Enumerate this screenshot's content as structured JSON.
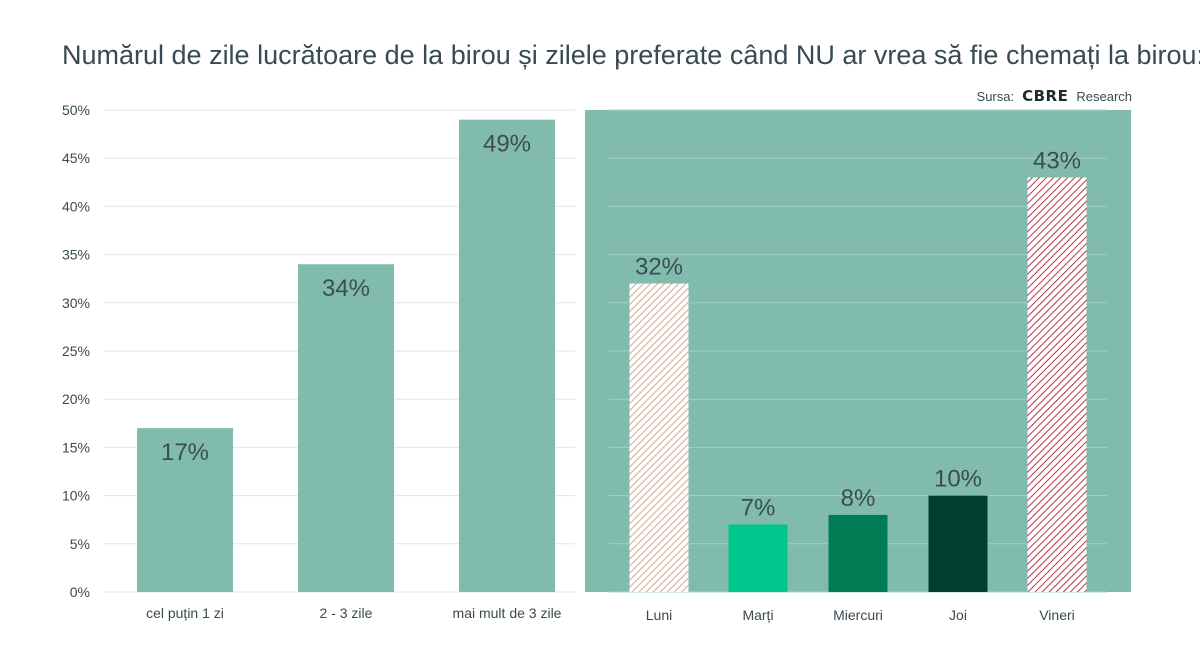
{
  "header": {
    "title": "Numărul de zile lucrătoare de la birou și zilele preferate când NU ar vrea să fie chemați la birou:",
    "source_label": "Sursa:",
    "source_logo": "CBRE",
    "source_suffix": "Research"
  },
  "colors": {
    "background": "#ffffff",
    "bar_main": "#80bbad",
    "panel": "#80bbad",
    "grid": "#e2e6e4",
    "grid_on_panel": "#a6d0c6",
    "hatch_light": "#d9a58f",
    "hatch_dark": "#b5384a",
    "marti": "#00c78c",
    "miercuri": "#007c55",
    "joi": "#003f2d",
    "text": "#3a4a52"
  },
  "chart_data": [
    {
      "type": "bar",
      "categories": [
        "cel puțin 1 zi",
        "2 - 3 zile",
        "mai mult de 3 zile"
      ],
      "values": [
        17,
        34,
        49
      ],
      "data_labels": [
        "17%",
        "34%",
        "49%"
      ],
      "ylim": [
        0,
        50
      ],
      "yticks": [
        "0%",
        "5%",
        "10%",
        "15%",
        "20%",
        "25%",
        "30%",
        "35%",
        "40%",
        "45%",
        "50%"
      ],
      "grid": true
    },
    {
      "type": "bar",
      "categories": [
        "Luni",
        "Marți",
        "Miercuri",
        "Joi",
        "Vineri"
      ],
      "values": [
        32,
        7,
        8,
        10,
        43
      ],
      "data_labels": [
        "32%",
        "7%",
        "8%",
        "10%",
        "43%"
      ],
      "fills": [
        "hatch-light",
        "solid-marti",
        "solid-miercuri",
        "solid-joi",
        "hatch-dark"
      ],
      "ylim": [
        0,
        50
      ],
      "grid": true
    }
  ]
}
